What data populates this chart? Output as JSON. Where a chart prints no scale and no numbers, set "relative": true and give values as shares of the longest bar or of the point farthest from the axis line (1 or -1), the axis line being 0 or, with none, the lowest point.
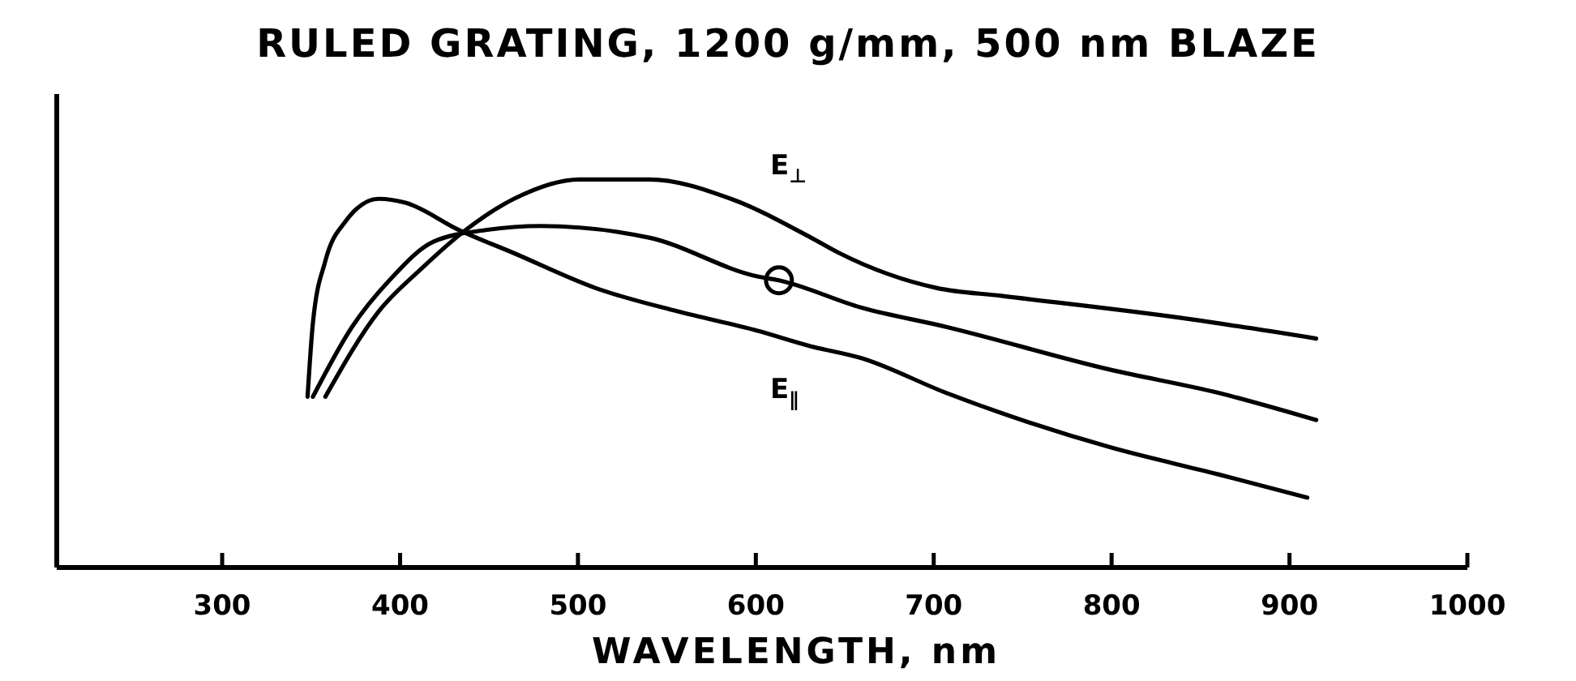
{
  "chart_data": {
    "type": "line",
    "title": "RULED GRATING, 1200 g/mm, 500 nm BLAZE",
    "xlabel": "WAVELENGTH, nm",
    "relative": true,
    "xlim": [
      207,
      1000
    ],
    "xticks": [
      300,
      400,
      500,
      600,
      700,
      800,
      900,
      1000
    ],
    "series": [
      {
        "name": "E$_{∥}$",
        "color": "#000000",
        "x": [
          348,
          351,
          358,
          369,
          388,
          403,
          433,
          464,
          510,
          556,
          601,
          631,
          659,
          707,
          799,
          860,
          910
        ],
        "values": [
          0.44,
          0.63,
          0.79,
          0.89,
          0.95,
          0.94,
          0.87,
          0.81,
          0.72,
          0.66,
          0.61,
          0.57,
          0.54,
          0.45,
          0.31,
          0.24,
          0.18
        ]
      },
      {
        "color": "#000000",
        "x": [
          351,
          373,
          394,
          419,
          449,
          479,
          540,
          601,
          613,
          659,
          707,
          799,
          860,
          915
        ],
        "values": [
          0.44,
          0.62,
          0.74,
          0.84,
          0.87,
          0.88,
          0.85,
          0.75,
          0.74,
          0.67,
          0.62,
          0.51,
          0.45,
          0.38
        ]
      },
      {
        "name": "E$_{⊥}$",
        "color": "#000000",
        "x": [
          358,
          388,
          412,
          437,
          464,
          501,
          540,
          586,
          631,
          647,
          702,
          738,
          844,
          915
        ],
        "values": [
          0.44,
          0.66,
          0.77,
          0.87,
          0.95,
          1.0,
          1.0,
          0.95,
          0.85,
          0.81,
          0.72,
          0.7,
          0.64,
          0.59
        ]
      },
      {
        "type": "scatter",
        "color": "#000000",
        "marker": "circle",
        "x": [
          613
        ],
        "values": [
          0.74
        ]
      }
    ],
    "grid": false
  }
}
